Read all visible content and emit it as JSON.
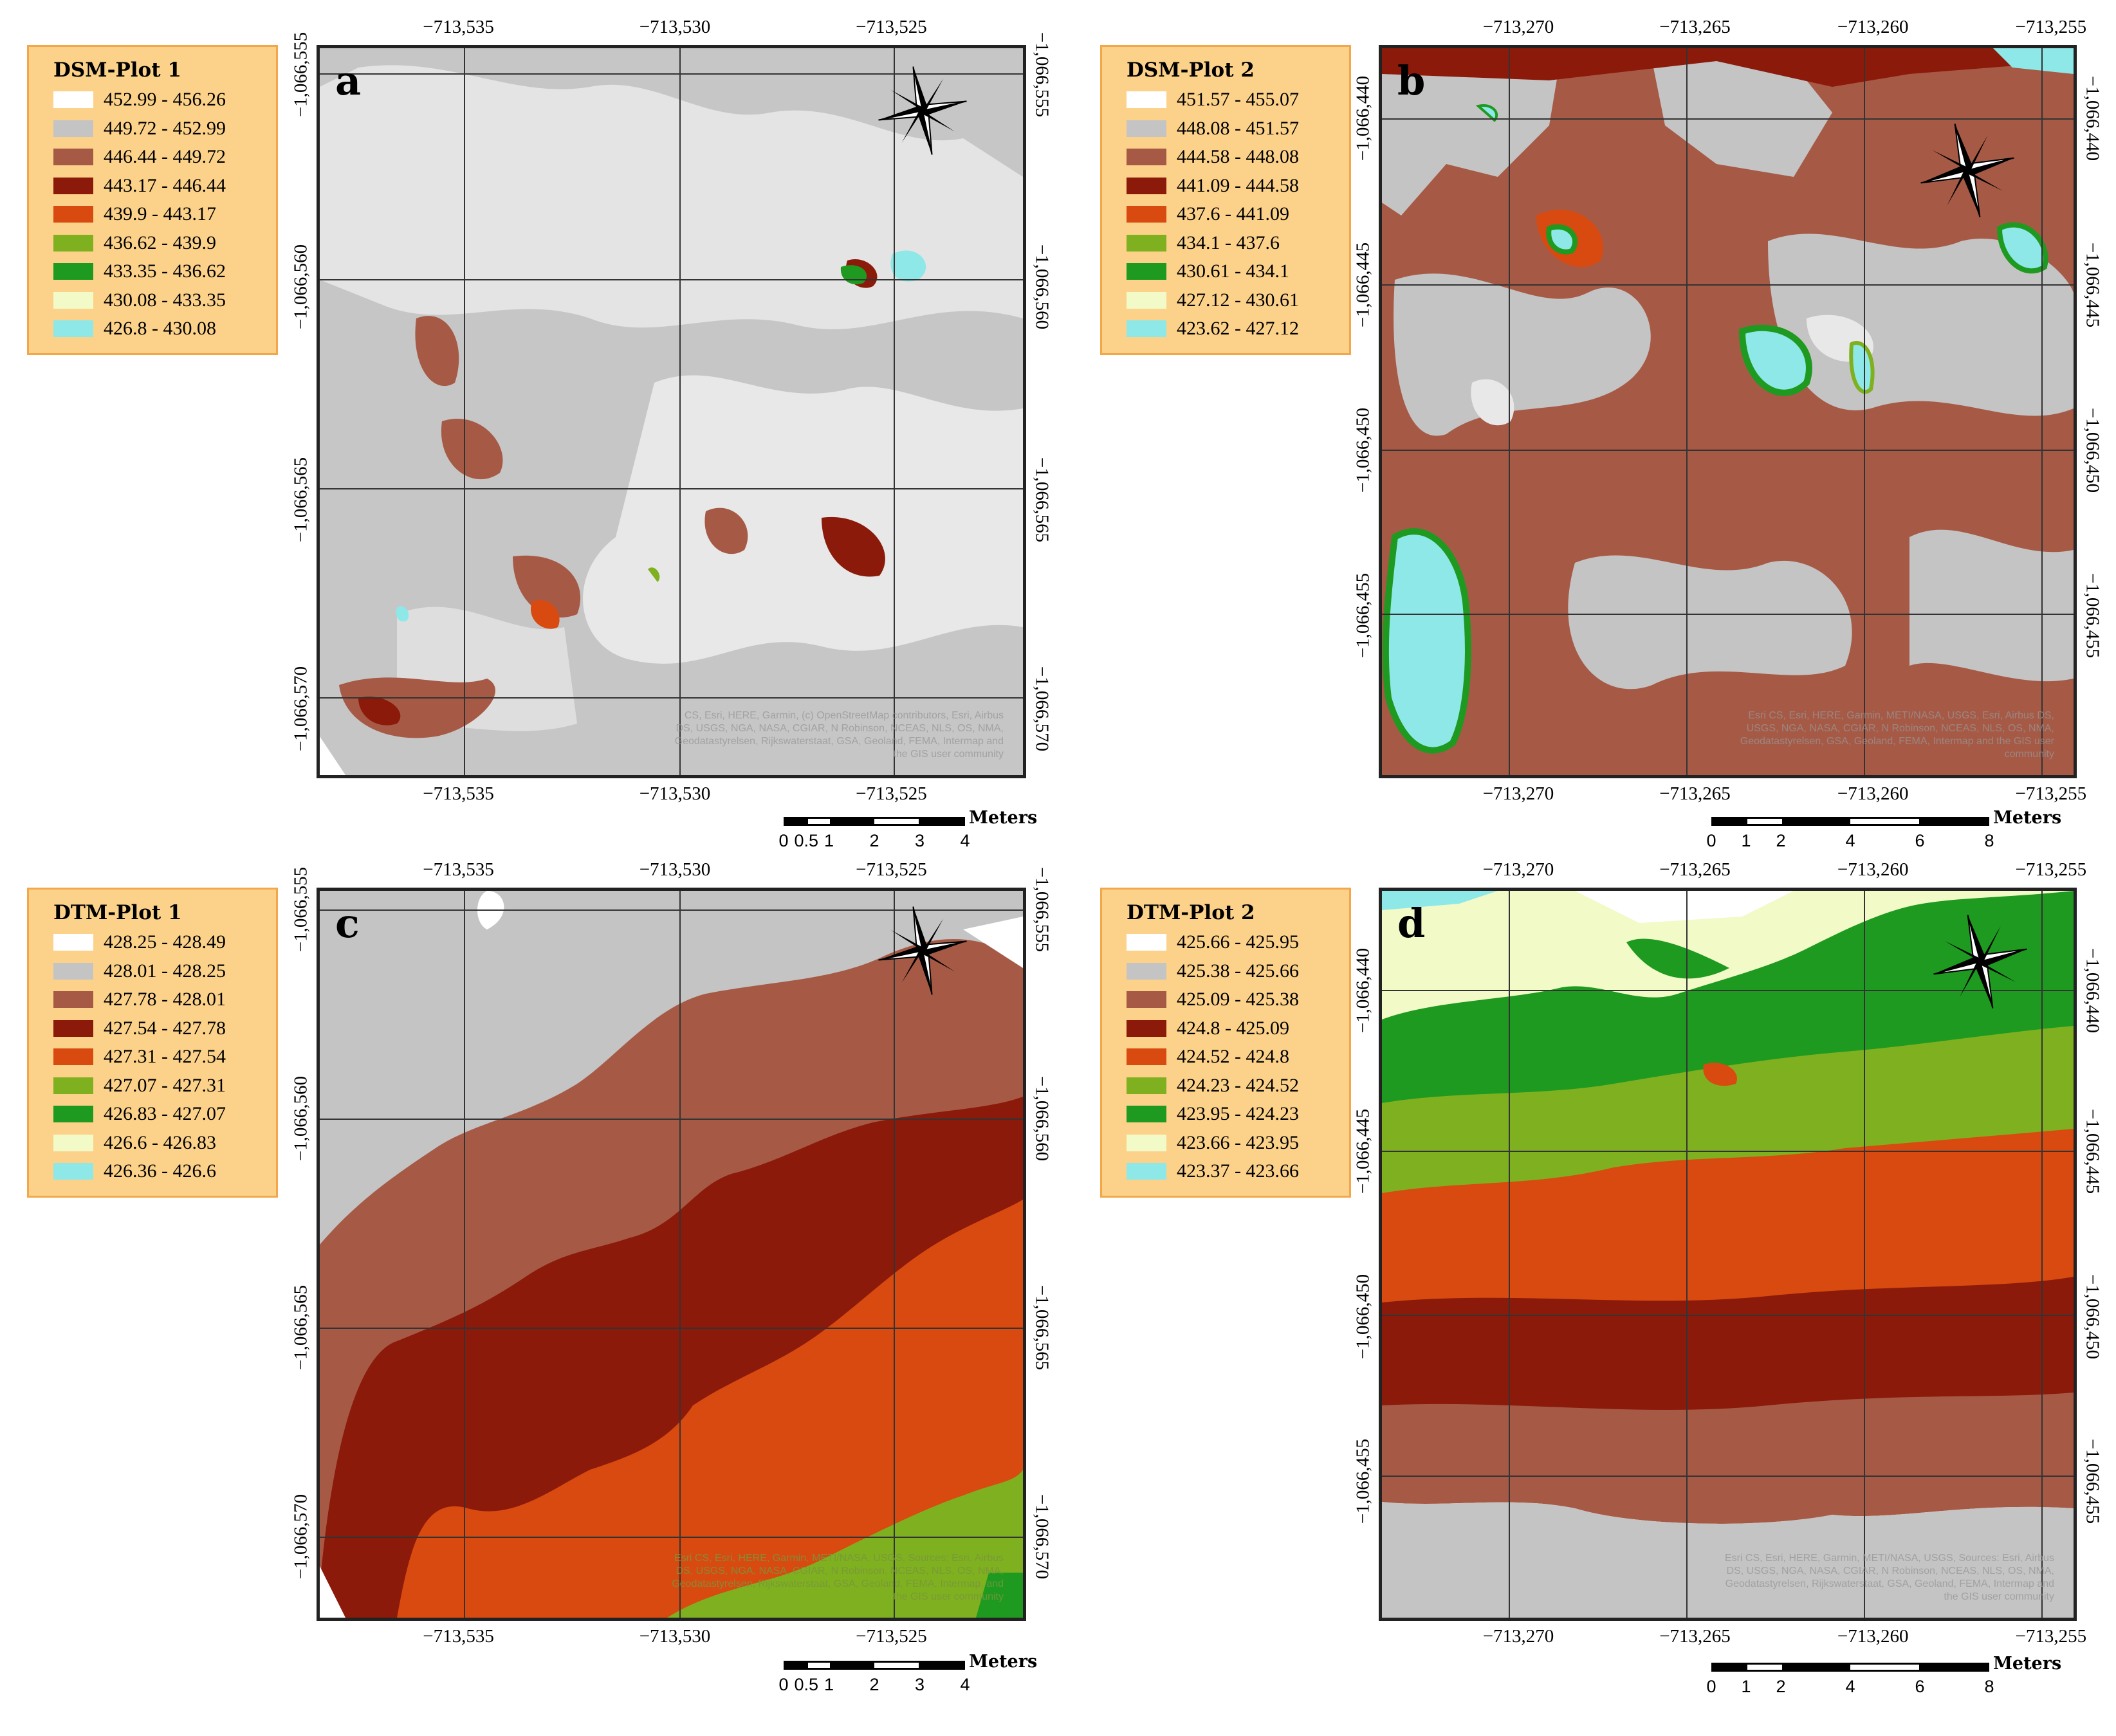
{
  "panels": [
    {
      "id": "a",
      "letter": "a",
      "legend_title": "DSM-Plot 1",
      "legend": [
        {
          "label": "452.99 - 456.26",
          "color": "#ffffff"
        },
        {
          "label": "449.72 - 452.99",
          "color": "#c4c4c4"
        },
        {
          "label": "446.44 - 449.72",
          "color": "#a65a46"
        },
        {
          "label": "443.17 - 446.44",
          "color": "#8b1a0a"
        },
        {
          "label": "439.9 - 443.17",
          "color": "#d84a10"
        },
        {
          "label": "436.62 - 439.9",
          "color": "#7fb020"
        },
        {
          "label": "433.35 - 436.62",
          "color": "#1e9a20"
        },
        {
          "label": "430.08 - 433.35",
          "color": "#f2fac8"
        },
        {
          "label": "426.8 - 430.08",
          "color": "#8ee8e8"
        }
      ],
      "x_ticks": [
        "−713,535",
        "−713,530",
        "−713,525"
      ],
      "y_ticks": [
        "−1,066,555",
        "−1,066,560",
        "−1,066,565",
        "−1,066,570"
      ],
      "attribution": "CS, Esri, HERE, Garmin, (c) OpenStreetMap contributors, Esri, Airbus DS, USGS, NGA, NASA, CGIAR, N Robinson, NCEAS, NLS, OS, NMA, Geodatastyrelsen, Rijkswaterstaat, GSA, Geoland, FEMA, Intermap and the GIS user community",
      "scale": {
        "unit": "Meters",
        "labels": [
          "0",
          "0.5",
          "1",
          "2",
          "3",
          "4"
        ]
      }
    },
    {
      "id": "b",
      "letter": "b",
      "legend_title": "DSM-Plot 2",
      "legend": [
        {
          "label": "451.57 - 455.07",
          "color": "#ffffff"
        },
        {
          "label": "448.08 - 451.57",
          "color": "#c4c4c4"
        },
        {
          "label": "444.58 - 448.08",
          "color": "#a65a46"
        },
        {
          "label": "441.09 - 444.58",
          "color": "#8b1a0a"
        },
        {
          "label": "437.6 - 441.09",
          "color": "#d84a10"
        },
        {
          "label": "434.1 - 437.6",
          "color": "#7fb020"
        },
        {
          "label": "430.61 - 434.1",
          "color": "#1e9a20"
        },
        {
          "label": "427.12 - 430.61",
          "color": "#f2fac8"
        },
        {
          "label": "423.62 - 427.12",
          "color": "#8ee8e8"
        }
      ],
      "x_ticks": [
        "−713,270",
        "−713,265",
        "−713,260",
        "−713,255"
      ],
      "y_ticks": [
        "−1,066,440",
        "−1,066,445",
        "−1,066,450",
        "−1,066,455"
      ],
      "attribution": "Esri CS, Esri, HERE, Garmin, METI/NASA, USGS, Esri, Airbus DS, USGS, NGA, NASA, CGIAR, N Robinson, NCEAS, NLS, OS, NMA, Geodatastyrelsen, GSA, Geoland, FEMA, Intermap and the GIS user community",
      "scale": {
        "unit": "Meters",
        "labels": [
          "0",
          "1",
          "2",
          "4",
          "6",
          "8"
        ]
      }
    },
    {
      "id": "c",
      "letter": "c",
      "legend_title": "DTM-Plot 1",
      "legend": [
        {
          "label": "428.25 - 428.49",
          "color": "#ffffff"
        },
        {
          "label": "428.01 - 428.25",
          "color": "#c4c4c4"
        },
        {
          "label": "427.78 - 428.01",
          "color": "#a65a46"
        },
        {
          "label": "427.54 - 427.78",
          "color": "#8b1a0a"
        },
        {
          "label": "427.31 - 427.54",
          "color": "#d84a10"
        },
        {
          "label": "427.07 - 427.31",
          "color": "#7fb020"
        },
        {
          "label": "426.83 - 427.07",
          "color": "#1e9a20"
        },
        {
          "label": "426.6 - 426.83",
          "color": "#f2fac8"
        },
        {
          "label": "426.36 - 426.6",
          "color": "#8ee8e8"
        }
      ],
      "x_ticks": [
        "−713,535",
        "−713,530",
        "−713,525"
      ],
      "y_ticks": [
        "−1,066,555",
        "−1,066,560",
        "−1,066,565",
        "−1,066,570"
      ],
      "attribution": "Esri CS, Esri, HERE, Garmin, METI/NASA, USGS, Sources: Esri, Airbus DS, USGS, NGA, NASA, CGIAR, N Robinson, NCEAS, NLS, OS, NMA, Geodatastyrelsen, Rijkswaterstaat, GSA, Geoland, FEMA, Intermap, and the GIS user community",
      "scale": {
        "unit": "Meters",
        "labels": [
          "0",
          "0.5",
          "1",
          "2",
          "3",
          "4"
        ]
      }
    },
    {
      "id": "d",
      "letter": "d",
      "legend_title": "DTM-Plot 2",
      "legend": [
        {
          "label": "425.66 - 425.95",
          "color": "#ffffff"
        },
        {
          "label": "425.38 - 425.66",
          "color": "#c4c4c4"
        },
        {
          "label": "425.09 - 425.38",
          "color": "#a65a46"
        },
        {
          "label": "424.8 - 425.09",
          "color": "#8b1a0a"
        },
        {
          "label": "424.52 - 424.8",
          "color": "#d84a10"
        },
        {
          "label": "424.23 - 424.52",
          "color": "#7fb020"
        },
        {
          "label": "423.95 - 424.23",
          "color": "#1e9a20"
        },
        {
          "label": "423.66 - 423.95",
          "color": "#f2fac8"
        },
        {
          "label": "423.37 - 423.66",
          "color": "#8ee8e8"
        }
      ],
      "x_ticks": [
        "−713,270",
        "−713,265",
        "−713,260",
        "−713,255"
      ],
      "y_ticks": [
        "−1,066,440",
        "−1,066,445",
        "−1,066,450",
        "−1,066,455"
      ],
      "attribution": "Esri CS, Esri, HERE, Garmin, METI/NASA, USGS, Sources: Esri, Airbus DS, USGS, NGA, NASA, CGIAR, N Robinson, NCEAS, NLS, OS, NMA, Geodatastyrelsen, Rijkswaterstaat, GSA, Geoland, FEMA, Intermap and the GIS user community",
      "scale": {
        "unit": "Meters",
        "labels": [
          "0",
          "1",
          "2",
          "4",
          "6",
          "8"
        ]
      }
    }
  ]
}
